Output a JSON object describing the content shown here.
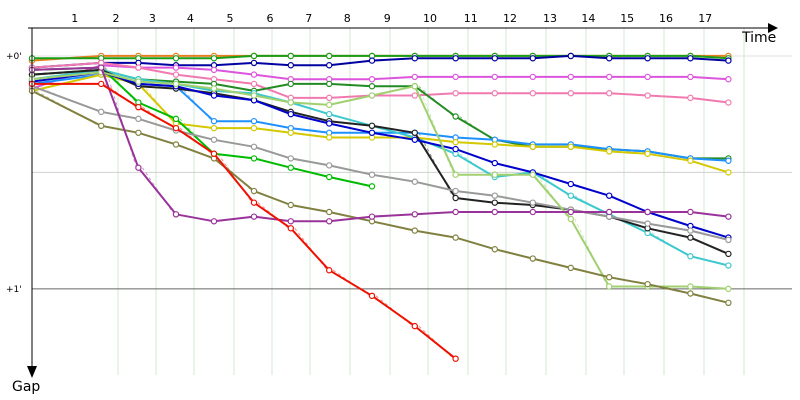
{
  "chart_data": {
    "type": "line",
    "title": "",
    "xlabel": "Time",
    "ylabel": "Gap",
    "laps": [
      "1",
      "2",
      "3",
      "4",
      "5",
      "6",
      "7",
      "8",
      "9",
      "10",
      "11",
      "12",
      "13",
      "14",
      "15",
      "16",
      "17"
    ],
    "gap_ticks": [
      {
        "label": "+0'",
        "value": 0
      },
      {
        "label": "+1'",
        "value": 1
      }
    ],
    "x_range": [
      0,
      19
    ],
    "y_range": [
      -0.12,
      1.37
    ],
    "grid": true,
    "legend": "none",
    "series": [
      {
        "color": "#e67e22",
        "points": [
          [
            0.0,
            0.02
          ],
          [
            1.73,
            0.0
          ],
          [
            2.66,
            0.0
          ],
          [
            3.6,
            0.0
          ],
          [
            4.55,
            0.0
          ],
          [
            5.55,
            0.0
          ],
          [
            6.47,
            0.0
          ],
          [
            7.43,
            0.0
          ],
          [
            8.5,
            0.0
          ],
          [
            9.57,
            0.0
          ],
          [
            10.59,
            0.0
          ],
          [
            11.57,
            0.0
          ],
          [
            12.52,
            0.0
          ],
          [
            13.47,
            0.0
          ],
          [
            14.43,
            0.0
          ],
          [
            15.39,
            0.0
          ],
          [
            16.46,
            0.0
          ],
          [
            17.41,
            0.0
          ]
        ]
      },
      {
        "color": "#1a9e1a",
        "points": [
          [
            0.0,
            0.01
          ],
          [
            1.73,
            0.01
          ],
          [
            2.66,
            0.01
          ],
          [
            3.6,
            0.01
          ],
          [
            4.55,
            0.01
          ],
          [
            5.55,
            0.0
          ],
          [
            6.47,
            0.0
          ],
          [
            7.43,
            0.0
          ],
          [
            8.5,
            0.0
          ],
          [
            9.57,
            0.0
          ],
          [
            10.59,
            0.0
          ],
          [
            11.57,
            0.0
          ],
          [
            12.52,
            0.0
          ],
          [
            13.47,
            0.0
          ],
          [
            14.43,
            0.0
          ],
          [
            15.39,
            0.0
          ],
          [
            16.46,
            0.0
          ],
          [
            17.41,
            0.01
          ]
        ]
      },
      {
        "color": "#0000a0",
        "points": [
          [
            0.0,
            0.05
          ],
          [
            1.73,
            0.03
          ],
          [
            2.66,
            0.03
          ],
          [
            3.6,
            0.04
          ],
          [
            4.55,
            0.04
          ],
          [
            5.55,
            0.03
          ],
          [
            6.47,
            0.04
          ],
          [
            7.43,
            0.04
          ],
          [
            8.5,
            0.02
          ],
          [
            9.57,
            0.01
          ],
          [
            10.59,
            0.01
          ],
          [
            11.57,
            0.01
          ],
          [
            12.52,
            0.01
          ],
          [
            13.47,
            0.0
          ],
          [
            14.43,
            0.01
          ],
          [
            15.39,
            0.01
          ],
          [
            16.46,
            0.01
          ],
          [
            17.41,
            0.02
          ]
        ]
      },
      {
        "color": "#dd55dd",
        "points": [
          [
            0.0,
            0.14
          ],
          [
            1.73,
            0.04
          ],
          [
            2.66,
            0.05
          ],
          [
            3.6,
            0.05
          ],
          [
            4.55,
            0.06
          ],
          [
            5.55,
            0.08
          ],
          [
            6.47,
            0.1
          ],
          [
            7.43,
            0.1
          ],
          [
            8.5,
            0.1
          ],
          [
            9.57,
            0.09
          ],
          [
            10.59,
            0.09
          ],
          [
            11.57,
            0.09
          ],
          [
            12.52,
            0.09
          ],
          [
            13.47,
            0.09
          ],
          [
            14.43,
            0.09
          ],
          [
            15.39,
            0.09
          ],
          [
            16.46,
            0.09
          ],
          [
            17.41,
            0.1
          ]
        ]
      },
      {
        "color": "#f07ab0",
        "points": [
          [
            0.0,
            0.05
          ],
          [
            1.73,
            0.03
          ],
          [
            2.66,
            0.05
          ],
          [
            3.6,
            0.08
          ],
          [
            4.55,
            0.1
          ],
          [
            5.55,
            0.12
          ],
          [
            6.47,
            0.18
          ],
          [
            7.43,
            0.18
          ],
          [
            8.5,
            0.17
          ],
          [
            9.57,
            0.17
          ],
          [
            10.59,
            0.16
          ],
          [
            11.57,
            0.16
          ],
          [
            12.52,
            0.16
          ],
          [
            13.47,
            0.16
          ],
          [
            14.43,
            0.16
          ],
          [
            15.39,
            0.17
          ],
          [
            16.46,
            0.18
          ],
          [
            17.41,
            0.2
          ]
        ]
      },
      {
        "color": "#228b22",
        "points": [
          [
            0.0,
            0.08
          ],
          [
            1.73,
            0.06
          ],
          [
            2.66,
            0.1
          ],
          [
            3.6,
            0.11
          ],
          [
            4.55,
            0.12
          ],
          [
            5.55,
            0.15
          ],
          [
            6.47,
            0.12
          ],
          [
            7.43,
            0.12
          ],
          [
            8.5,
            0.13
          ],
          [
            9.57,
            0.13
          ],
          [
            10.59,
            0.26
          ],
          [
            11.57,
            0.36
          ],
          [
            12.52,
            0.39
          ],
          [
            13.47,
            0.39
          ],
          [
            14.43,
            0.4
          ],
          [
            15.39,
            0.41
          ],
          [
            16.46,
            0.44
          ],
          [
            17.41,
            0.44
          ]
        ]
      },
      {
        "color": "#1e90ff",
        "points": [
          [
            0.0,
            0.12
          ],
          [
            1.73,
            0.08
          ],
          [
            2.66,
            0.12
          ],
          [
            3.6,
            0.13
          ],
          [
            4.55,
            0.28
          ],
          [
            5.55,
            0.28
          ],
          [
            6.47,
            0.31
          ],
          [
            7.43,
            0.33
          ],
          [
            8.5,
            0.33
          ],
          [
            9.57,
            0.33
          ],
          [
            10.59,
            0.35
          ],
          [
            11.57,
            0.36
          ],
          [
            12.52,
            0.38
          ],
          [
            13.47,
            0.38
          ],
          [
            14.43,
            0.4
          ],
          [
            15.39,
            0.41
          ],
          [
            16.46,
            0.44
          ],
          [
            17.41,
            0.45
          ]
        ]
      },
      {
        "color": "#d4c800",
        "points": [
          [
            0.0,
            0.15
          ],
          [
            1.73,
            0.08
          ],
          [
            2.66,
            0.12
          ],
          [
            3.6,
            0.29
          ],
          [
            4.55,
            0.31
          ],
          [
            5.55,
            0.31
          ],
          [
            6.47,
            0.33
          ],
          [
            7.43,
            0.35
          ],
          [
            8.5,
            0.35
          ],
          [
            9.57,
            0.35
          ],
          [
            10.59,
            0.37
          ],
          [
            11.57,
            0.38
          ],
          [
            12.52,
            0.39
          ],
          [
            13.47,
            0.39
          ],
          [
            14.43,
            0.41
          ],
          [
            15.39,
            0.42
          ],
          [
            16.46,
            0.45
          ],
          [
            17.41,
            0.5
          ]
        ]
      },
      {
        "color": "#00bb00",
        "points": [
          [
            0.0,
            0.06
          ],
          [
            1.73,
            0.05
          ],
          [
            2.66,
            0.2
          ],
          [
            3.6,
            0.27
          ],
          [
            4.55,
            0.42
          ],
          [
            5.55,
            0.44
          ],
          [
            6.47,
            0.48
          ],
          [
            7.43,
            0.52
          ],
          [
            8.5,
            0.56
          ]
        ]
      },
      {
        "color": "#3cc8cc",
        "points": [
          [
            0.0,
            0.1
          ],
          [
            1.73,
            0.06
          ],
          [
            2.66,
            0.1
          ],
          [
            3.6,
            0.12
          ],
          [
            4.55,
            0.15
          ],
          [
            5.55,
            0.16
          ],
          [
            6.47,
            0.2
          ],
          [
            7.43,
            0.25
          ],
          [
            8.5,
            0.3
          ],
          [
            9.57,
            0.35
          ],
          [
            10.59,
            0.42
          ],
          [
            11.57,
            0.52
          ],
          [
            12.52,
            0.5
          ],
          [
            13.47,
            0.6
          ],
          [
            14.43,
            0.68
          ],
          [
            15.39,
            0.76
          ],
          [
            16.46,
            0.86
          ],
          [
            17.41,
            0.9
          ]
        ]
      },
      {
        "color": "#222222",
        "points": [
          [
            0.0,
            0.08
          ],
          [
            1.73,
            0.06
          ],
          [
            2.66,
            0.13
          ],
          [
            3.6,
            0.14
          ],
          [
            4.55,
            0.16
          ],
          [
            5.55,
            0.19
          ],
          [
            6.47,
            0.24
          ],
          [
            7.43,
            0.28
          ],
          [
            8.5,
            0.3
          ],
          [
            9.57,
            0.33
          ],
          [
            10.59,
            0.61
          ],
          [
            11.57,
            0.63
          ],
          [
            12.52,
            0.64
          ],
          [
            13.47,
            0.66
          ],
          [
            14.43,
            0.69
          ],
          [
            15.39,
            0.74
          ],
          [
            16.46,
            0.78
          ],
          [
            17.41,
            0.85
          ]
        ]
      },
      {
        "color": "#0000cc",
        "points": [
          [
            0.0,
            0.11
          ],
          [
            1.73,
            0.07
          ],
          [
            2.66,
            0.12
          ],
          [
            3.6,
            0.13
          ],
          [
            4.55,
            0.17
          ],
          [
            5.55,
            0.19
          ],
          [
            6.47,
            0.25
          ],
          [
            7.43,
            0.29
          ],
          [
            8.5,
            0.33
          ],
          [
            9.57,
            0.36
          ],
          [
            10.59,
            0.4
          ],
          [
            11.57,
            0.46
          ],
          [
            12.52,
            0.5
          ],
          [
            13.47,
            0.55
          ],
          [
            14.43,
            0.6
          ],
          [
            15.39,
            0.67
          ],
          [
            16.46,
            0.73
          ],
          [
            17.41,
            0.78
          ]
        ]
      },
      {
        "color": "#999999",
        "points": [
          [
            0.0,
            0.13
          ],
          [
            1.73,
            0.24
          ],
          [
            2.66,
            0.27
          ],
          [
            3.6,
            0.32
          ],
          [
            4.55,
            0.36
          ],
          [
            5.55,
            0.39
          ],
          [
            6.47,
            0.44
          ],
          [
            7.43,
            0.47
          ],
          [
            8.5,
            0.51
          ],
          [
            9.57,
            0.54
          ],
          [
            10.59,
            0.58
          ],
          [
            11.57,
            0.6
          ],
          [
            12.52,
            0.63
          ],
          [
            13.47,
            0.66
          ],
          [
            14.43,
            0.69
          ],
          [
            15.39,
            0.72
          ],
          [
            16.46,
            0.75
          ],
          [
            17.41,
            0.79
          ]
        ]
      },
      {
        "color": "#a0d070",
        "points": [
          [
            0.0,
            0.1
          ],
          [
            1.73,
            0.07
          ],
          [
            2.66,
            0.11
          ],
          [
            3.6,
            0.12
          ],
          [
            4.55,
            0.14
          ],
          [
            5.55,
            0.17
          ],
          [
            6.47,
            0.2
          ],
          [
            7.43,
            0.21
          ],
          [
            8.5,
            0.17
          ],
          [
            9.57,
            0.13
          ],
          [
            10.59,
            0.51
          ],
          [
            11.57,
            0.51
          ],
          [
            12.52,
            0.51
          ],
          [
            13.47,
            0.7
          ],
          [
            14.43,
            0.99
          ],
          [
            15.39,
            0.99
          ],
          [
            16.46,
            0.99
          ],
          [
            17.41,
            1.0
          ]
        ]
      },
      {
        "color": "#808040",
        "points": [
          [
            0.0,
            0.15
          ],
          [
            1.73,
            0.3
          ],
          [
            2.66,
            0.33
          ],
          [
            3.6,
            0.38
          ],
          [
            4.55,
            0.44
          ],
          [
            5.55,
            0.58
          ],
          [
            6.47,
            0.64
          ],
          [
            7.43,
            0.67
          ],
          [
            8.5,
            0.71
          ],
          [
            9.57,
            0.75
          ],
          [
            10.59,
            0.78
          ],
          [
            11.57,
            0.83
          ],
          [
            12.52,
            0.87
          ],
          [
            13.47,
            0.91
          ],
          [
            14.43,
            0.95
          ],
          [
            15.39,
            0.98
          ],
          [
            16.46,
            1.02
          ],
          [
            17.41,
            1.06
          ]
        ]
      },
      {
        "color": "#993399",
        "points": [
          [
            0.0,
            0.06
          ],
          [
            1.73,
            0.05
          ],
          [
            2.66,
            0.48
          ],
          [
            3.6,
            0.68
          ],
          [
            4.55,
            0.71
          ],
          [
            5.55,
            0.69
          ],
          [
            6.47,
            0.71
          ],
          [
            7.43,
            0.71
          ],
          [
            8.5,
            0.69
          ],
          [
            9.57,
            0.68
          ],
          [
            10.59,
            0.67
          ],
          [
            11.57,
            0.67
          ],
          [
            12.52,
            0.67
          ],
          [
            13.47,
            0.67
          ],
          [
            14.43,
            0.67
          ],
          [
            15.39,
            0.67
          ],
          [
            16.46,
            0.67
          ],
          [
            17.41,
            0.69
          ]
        ]
      },
      {
        "color": "#ee1100",
        "points": [
          [
            0.0,
            0.12
          ],
          [
            1.73,
            0.12
          ],
          [
            2.66,
            0.22
          ],
          [
            3.6,
            0.31
          ],
          [
            4.55,
            0.42
          ],
          [
            5.55,
            0.63
          ],
          [
            6.47,
            0.74
          ],
          [
            7.43,
            0.92
          ],
          [
            8.5,
            1.03
          ],
          [
            9.57,
            1.16
          ],
          [
            10.59,
            1.3
          ]
        ]
      }
    ]
  }
}
